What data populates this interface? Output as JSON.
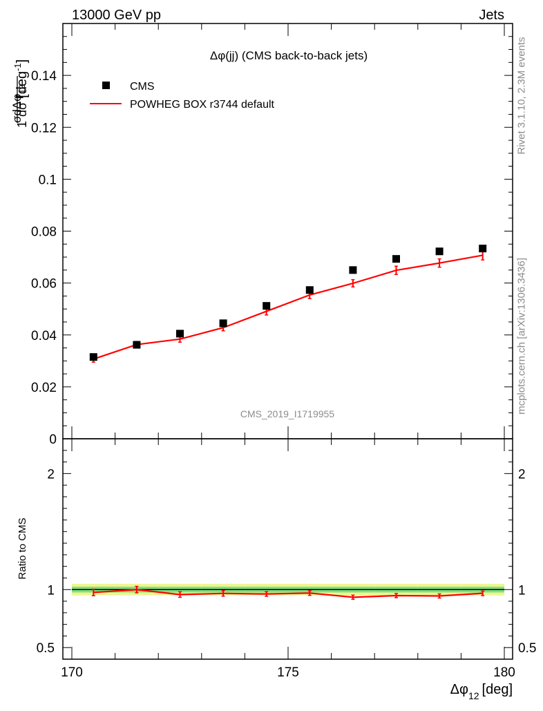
{
  "header": {
    "left": "13000 GeV pp",
    "right": "Jets",
    "plot_title": "Δφ(jj) (CMS back-to-back jets)",
    "analysis_id": "CMS_2019_I1719955"
  },
  "side_text": {
    "rivet": "Rivet 3.1.10,  2.3M events",
    "mcplots": "mcplots.cern.ch [arXiv:1306.3436]"
  },
  "legend": {
    "data_label": "CMS",
    "mc_label": "POWHEG BOX r3744 default"
  },
  "colors": {
    "data": "#000000",
    "mc": "#ff0000",
    "band_inner": "#7fe07f",
    "band_outer": "#f0f590",
    "side_text": "#8c8c8c"
  },
  "axes": {
    "main_ylabel": "1/σ dσ/dΔφ12 [deg⁻¹]",
    "ratio_ylabel": "Ratio to CMS",
    "xlabel": "Δφ12 [deg]"
  },
  "chart_data": [
    {
      "type": "scatter",
      "name": "main",
      "title": "Δφ(jj) (CMS back-to-back jets)",
      "xlim": [
        170,
        180
      ],
      "ylim": [
        0,
        0.16
      ],
      "yticks": [
        0,
        0.02,
        0.04,
        0.06,
        0.08,
        0.1,
        0.12,
        0.14
      ],
      "ytick_labels": [
        "0",
        "0.02",
        "0.04",
        "0.06",
        "0.08",
        "0.1",
        "0.12",
        "0.14"
      ],
      "xticks": [
        170,
        175,
        180
      ],
      "xtick_labels": [
        "170",
        "175",
        "180"
      ],
      "x": [
        170.5,
        171.5,
        172.5,
        173.5,
        174.5,
        175.5,
        176.5,
        177.5,
        178.5,
        179.5
      ],
      "series": [
        {
          "name": "CMS",
          "values": [
            0.0315,
            0.0362,
            0.0405,
            0.0445,
            0.0512,
            0.0573,
            0.065,
            0.0693,
            0.0722,
            0.0733
          ]
        },
        {
          "name": "POWHEG BOX r3744 default",
          "values": [
            0.0307,
            0.0363,
            0.0384,
            0.0428,
            0.0491,
            0.0554,
            0.0599,
            0.0649,
            0.0677,
            0.0707
          ],
          "errors": [
            0.0012,
            0.0012,
            0.0012,
            0.0012,
            0.0014,
            0.0014,
            0.0014,
            0.0016,
            0.0016,
            0.0018
          ]
        }
      ]
    },
    {
      "type": "line",
      "name": "ratio",
      "ylabel": "Ratio to CMS",
      "xlim": [
        170,
        180
      ],
      "ylim": [
        0.4,
        2.3
      ],
      "yticks": [
        0.5,
        1,
        2
      ],
      "ytick_labels": [
        "0.5",
        "1",
        "2"
      ],
      "x": [
        170.5,
        171.5,
        172.5,
        173.5,
        174.5,
        175.5,
        176.5,
        177.5,
        178.5,
        179.5
      ],
      "series": [
        {
          "name": "POWHEG BOX r3744 default",
          "values": [
            0.975,
            1.0,
            0.957,
            0.967,
            0.962,
            0.97,
            0.934,
            0.948,
            0.945,
            0.968
          ],
          "errors": [
            0.028,
            0.028,
            0.024,
            0.024,
            0.02,
            0.02,
            0.018,
            0.018,
            0.018,
            0.02
          ]
        }
      ],
      "band_inner": [
        0.025,
        0.025,
        0.025,
        0.025,
        0.025,
        0.025,
        0.025,
        0.025,
        0.025,
        0.025
      ],
      "band_outer": [
        0.05,
        0.05,
        0.05,
        0.05,
        0.05,
        0.05,
        0.05,
        0.05,
        0.05,
        0.05
      ]
    }
  ]
}
